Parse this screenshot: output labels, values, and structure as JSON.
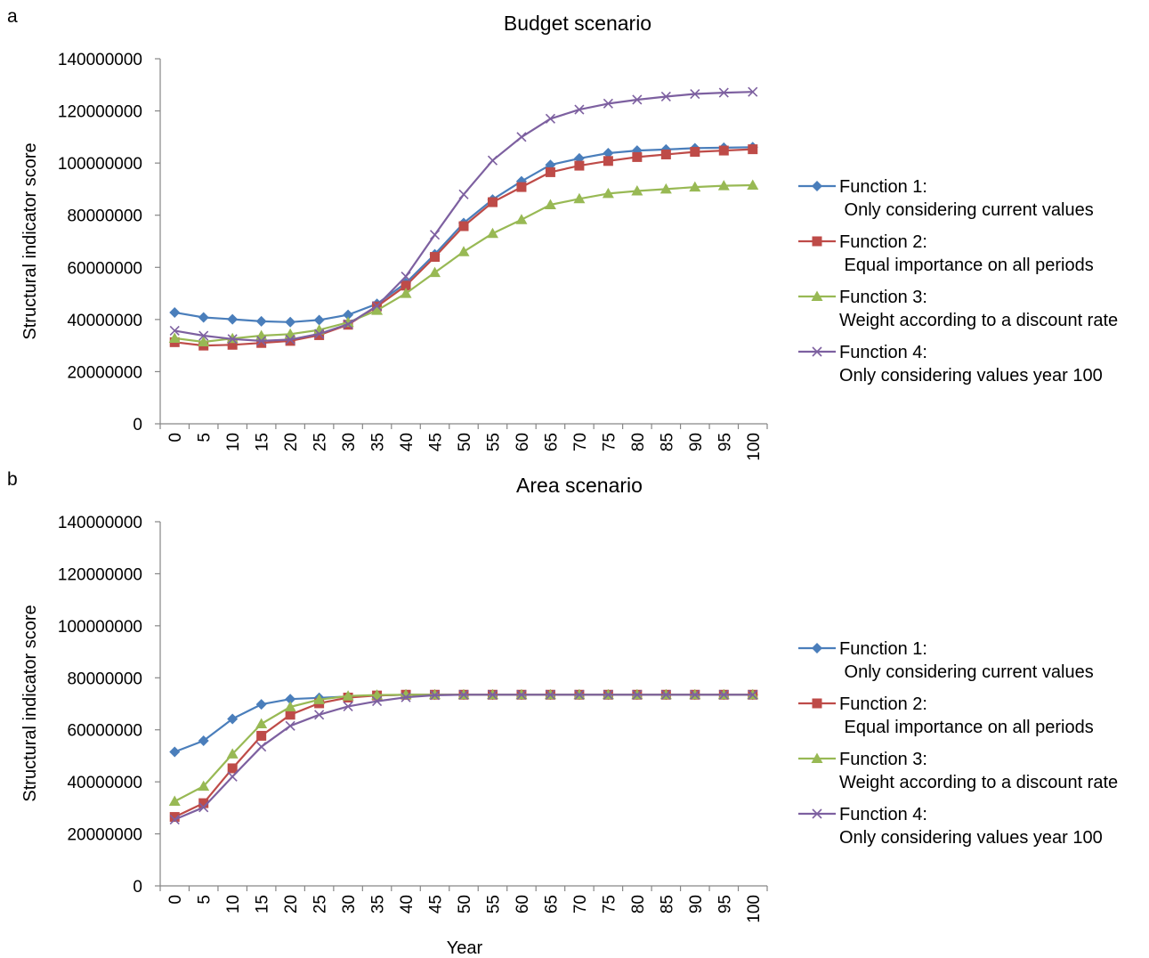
{
  "figure": {
    "xlabel": "Year",
    "x": [
      0,
      5,
      10,
      15,
      20,
      25,
      30,
      35,
      40,
      45,
      50,
      55,
      60,
      65,
      70,
      75,
      80,
      85,
      90,
      95,
      100
    ],
    "legend_placement": "right",
    "series_styles": [
      {
        "color": "#4a7ebb",
        "marker": "diamond"
      },
      {
        "color": "#be4b48",
        "marker": "square"
      },
      {
        "color": "#98b954",
        "marker": "triangle"
      },
      {
        "color": "#7d60a0",
        "marker": "x"
      }
    ]
  },
  "chart_data": [
    {
      "panel_letter": "a",
      "type": "line",
      "title": "Budget scenario",
      "xlabel": "",
      "ylabel": "Structural indicator score",
      "ylim": [
        0,
        140000000
      ],
      "yticks": [
        0,
        20000000,
        40000000,
        60000000,
        80000000,
        100000000,
        120000000,
        140000000
      ],
      "x": [
        0,
        5,
        10,
        15,
        20,
        25,
        30,
        35,
        40,
        45,
        50,
        55,
        60,
        65,
        70,
        75,
        80,
        85,
        90,
        95,
        100
      ],
      "grid": false,
      "series": [
        {
          "name_line1": "Function 1:",
          "name_line2": " Only considering current values",
          "values": [
            42700000,
            40800000,
            40100000,
            39300000,
            39000000,
            39800000,
            41800000,
            46000000,
            54000000,
            65000000,
            77000000,
            86000000,
            93000000,
            99300000,
            101800000,
            103800000,
            104800000,
            105200000,
            105700000,
            105900000,
            106100000
          ]
        },
        {
          "name_line1": "Function 2:",
          "name_line2": " Equal importance on all periods",
          "values": [
            31300000,
            30000000,
            30300000,
            31000000,
            31800000,
            34000000,
            38000000,
            45000000,
            53000000,
            64000000,
            75800000,
            85000000,
            90800000,
            96500000,
            99000000,
            100800000,
            102300000,
            103300000,
            104300000,
            104800000,
            105300000
          ]
        },
        {
          "name_line1": "Function 3:",
          "name_line2": "Weight according to a discount rate",
          "values": [
            32800000,
            31400000,
            32700000,
            33800000,
            34400000,
            36000000,
            38900000,
            43500000,
            50000000,
            58000000,
            66000000,
            73000000,
            78300000,
            84000000,
            86300000,
            88300000,
            89300000,
            90000000,
            90800000,
            91300000,
            91500000
          ]
        },
        {
          "name_line1": "Function 4:",
          "name_line2": "Only considering values year 100",
          "values": [
            35700000,
            33800000,
            32500000,
            31800000,
            32300000,
            34500000,
            38200000,
            45200000,
            56500000,
            72500000,
            88000000,
            101000000,
            110000000,
            117000000,
            120500000,
            122800000,
            124300000,
            125500000,
            126500000,
            127000000,
            127300000
          ]
        }
      ]
    },
    {
      "panel_letter": "b",
      "type": "line",
      "title": "Area scenario",
      "xlabel": "Year",
      "ylabel": "Structural indicator score",
      "ylim": [
        0,
        140000000
      ],
      "yticks": [
        0,
        20000000,
        40000000,
        60000000,
        80000000,
        100000000,
        120000000,
        140000000
      ],
      "x": [
        0,
        5,
        10,
        15,
        20,
        25,
        30,
        35,
        40,
        45,
        50,
        55,
        60,
        65,
        70,
        75,
        80,
        85,
        90,
        95,
        100
      ],
      "grid": false,
      "series": [
        {
          "name_line1": "Function 1:",
          "name_line2": " Only considering current values",
          "values": [
            51500000,
            55800000,
            64200000,
            69800000,
            71800000,
            72300000,
            72800000,
            73200000,
            73500000,
            73500000,
            73500000,
            73500000,
            73500000,
            73500000,
            73500000,
            73500000,
            73500000,
            73500000,
            73500000,
            73500000,
            73500000
          ]
        },
        {
          "name_line1": "Function 2:",
          "name_line2": " Equal importance on all periods",
          "values": [
            26500000,
            31800000,
            45200000,
            57700000,
            65800000,
            70200000,
            72400000,
            73200000,
            73500000,
            73500000,
            73500000,
            73500000,
            73500000,
            73500000,
            73500000,
            73500000,
            73500000,
            73500000,
            73500000,
            73500000,
            73500000
          ]
        },
        {
          "name_line1": "Function 3:",
          "name_line2": "Weight according to a discount rate",
          "values": [
            32500000,
            38300000,
            50700000,
            62300000,
            68800000,
            71600000,
            73000000,
            73400000,
            73500000,
            73500000,
            73500000,
            73500000,
            73500000,
            73500000,
            73500000,
            73500000,
            73500000,
            73500000,
            73500000,
            73500000,
            73500000
          ]
        },
        {
          "name_line1": "Function 4:",
          "name_line2": "Only considering values year 100",
          "values": [
            25500000,
            30200000,
            42000000,
            53500000,
            61500000,
            65800000,
            69000000,
            71000000,
            72500000,
            73300000,
            73500000,
            73500000,
            73500000,
            73500000,
            73500000,
            73500000,
            73500000,
            73500000,
            73500000,
            73500000,
            73500000
          ]
        }
      ]
    }
  ]
}
